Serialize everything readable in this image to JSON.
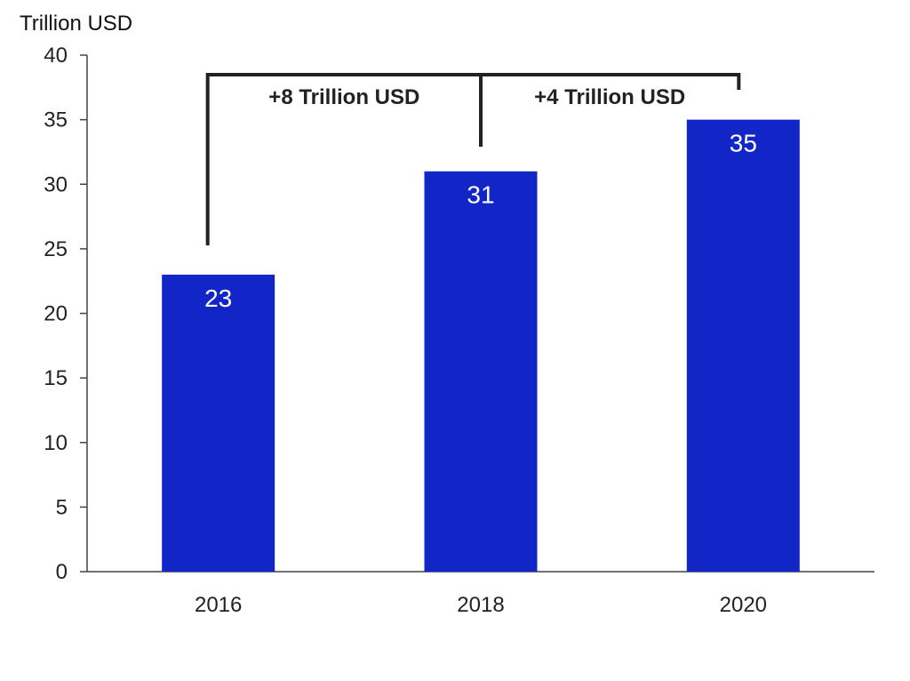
{
  "chart_data": {
    "type": "bar",
    "categories": [
      "2016",
      "2018",
      "2020"
    ],
    "values": [
      23,
      31,
      35
    ],
    "value_labels": [
      "23",
      "31",
      "35"
    ],
    "ylabel": "Trillion USD",
    "ylim": [
      0,
      40
    ],
    "yticks": [
      "0",
      "5",
      "10",
      "15",
      "20",
      "25",
      "30",
      "35",
      "40"
    ],
    "grid": false,
    "legend": "none",
    "bar_color": "#1226C8",
    "label_color": "#FFFFFF",
    "annotations": [
      {
        "text": "+8 Trillion USD",
        "from_category": "2016",
        "to_category": "2018"
      },
      {
        "text": "+4 Trillion USD",
        "from_category": "2018",
        "to_category": "2020"
      }
    ]
  }
}
